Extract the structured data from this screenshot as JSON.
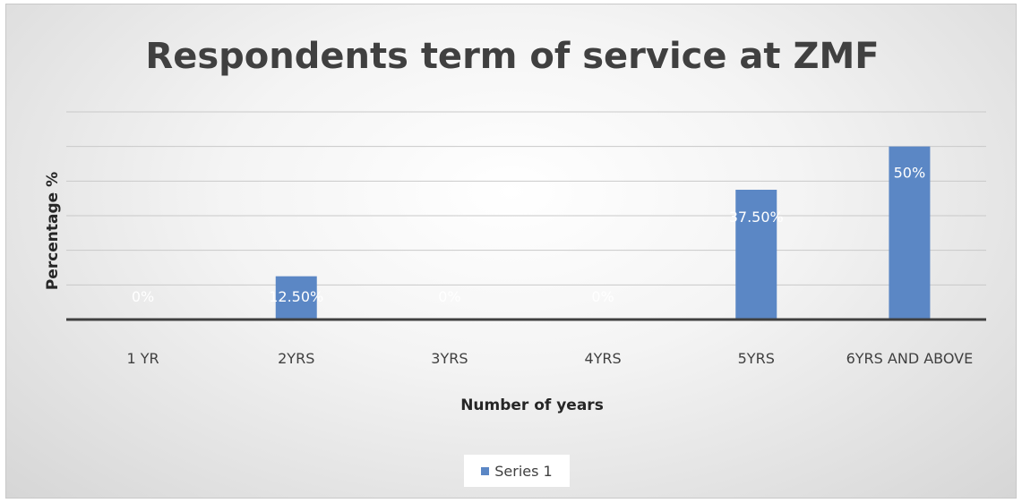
{
  "chart_data": {
    "type": "bar",
    "title": "Respondents term of service at ZMF",
    "xlabel": "Number of years",
    "ylabel": "Percentage %",
    "categories": [
      "1 YR",
      "2YRS",
      "3YRS",
      "4YRS",
      "5YRS",
      "6YRS AND ABOVE"
    ],
    "series": [
      {
        "name": "Series 1",
        "values": [
          0,
          12.5,
          0,
          0,
          37.5,
          50
        ],
        "labels": [
          "0%",
          "12.50%",
          "0%",
          "0%",
          "37.50%",
          "50%"
        ],
        "color": "#5b87c5"
      }
    ],
    "ylim": [
      0,
      60
    ],
    "grid": true,
    "legend_position": "bottom"
  }
}
